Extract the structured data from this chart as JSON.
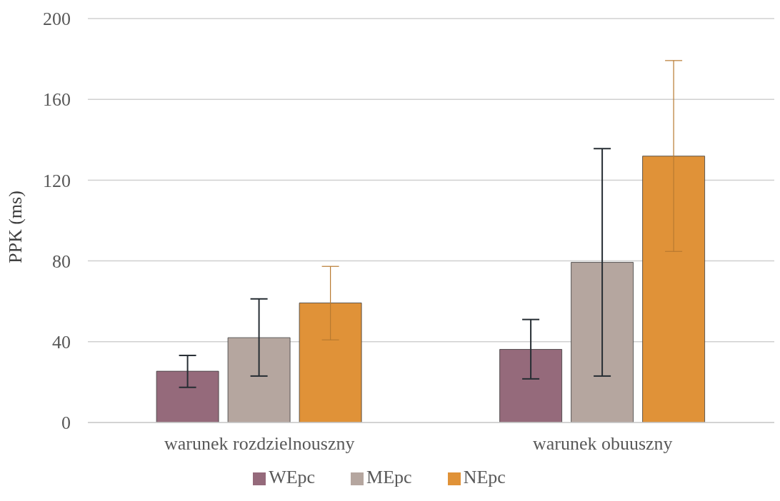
{
  "chart_data": {
    "type": "bar",
    "ylabel": "PPK (ms)",
    "categories": [
      "warunek rozdzielnouszny",
      "warunek obuuszny"
    ],
    "series": [
      {
        "name": "WEpc",
        "color": "#956a7b",
        "values": [
          25.4,
          36.2
        ],
        "errors": [
          [
            17.4,
            33.2
          ],
          [
            21.6,
            51
          ]
        ]
      },
      {
        "name": "MEpc",
        "color": "#b5a69f",
        "values": [
          42,
          79.3
        ],
        "errors": [
          [
            23,
            61.2
          ],
          [
            23,
            135.6
          ]
        ]
      },
      {
        "name": "NEpc",
        "color": "#e09238",
        "values": [
          59.2,
          131.9
        ],
        "errors": [
          [
            40.9,
            77.3
          ],
          [
            84.7,
            179.2
          ]
        ]
      }
    ],
    "ylim": [
      0,
      200
    ],
    "yticks": [
      0,
      40,
      80,
      120,
      160,
      200
    ],
    "grid": "y",
    "legend": "bottom"
  }
}
